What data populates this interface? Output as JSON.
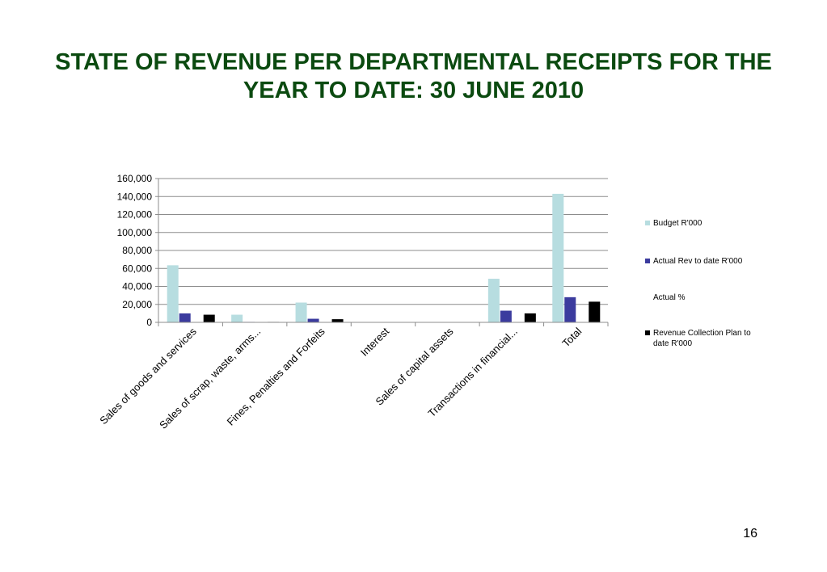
{
  "slide": {
    "title": "STATE OF REVENUE PER DEPARTMENTAL RECEIPTS FOR THE YEAR TO DATE: 30 JUNE 2010",
    "page_number": "16"
  },
  "chart_data": {
    "type": "bar",
    "title": "",
    "xlabel": "",
    "ylabel": "",
    "ylim": [
      0,
      160000
    ],
    "yticks": [
      "0",
      "20,000",
      "40,000",
      "60,000",
      "80,000",
      "100,000",
      "120,000",
      "140,000",
      "160,000"
    ],
    "grid": true,
    "legend_position": "right",
    "categories": [
      "Sales of goods and services",
      "Sales of scrap, waste, arms...",
      "Fines, Penalties and Forfeits",
      "Interest",
      "Sales of capital assets",
      "Transactions in financial...",
      "Total"
    ],
    "series": [
      {
        "name": "Budget R'000",
        "color": "#b7dde0",
        "values": [
          63500,
          8500,
          22000,
          100,
          200,
          48500,
          143000
        ]
      },
      {
        "name": "Actual Rev to date R'000",
        "color": "#3b3b9e",
        "values": [
          10000,
          500,
          4000,
          100,
          300,
          13000,
          28000
        ]
      },
      {
        "name": "Actual %",
        "color": "#ffffff",
        "values": [
          0,
          0,
          0,
          0,
          0,
          0,
          0
        ]
      },
      {
        "name": "Revenue Collection Plan to date R'000",
        "color": "#000000",
        "values": [
          8500,
          500,
          3500,
          100,
          0,
          10000,
          23000
        ]
      }
    ]
  }
}
